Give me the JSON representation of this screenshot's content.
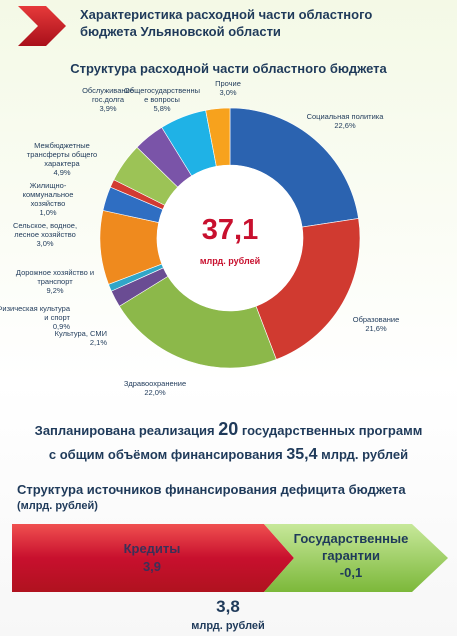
{
  "header": {
    "title_line1": "Характеристика расходной части областного",
    "title_line2": "бюджета Ульяновской области"
  },
  "chart_data": {
    "type": "pie",
    "title": "Структура расходной части областного бюджета",
    "center_value": "37,1",
    "center_unit": "млрд. рублей",
    "series": [
      {
        "name": "Социальная политика",
        "value": 22.6,
        "label": "22,6%",
        "color": "#2b63b0"
      },
      {
        "name": "Образование",
        "value": 21.6,
        "label": "21,6%",
        "color": "#d03a30"
      },
      {
        "name": "Здравоохранение",
        "value": 22.0,
        "label": "22,0%",
        "color": "#8cb84a"
      },
      {
        "name": "Культура, СМИ",
        "value": 2.1,
        "label": "2,1%",
        "color": "#6a4c93"
      },
      {
        "name": "Физическая культура и спорт",
        "value": 0.9,
        "label": "0,9%",
        "color": "#30a6c8"
      },
      {
        "name": "Дорожное хозяйство и транспорт",
        "value": 9.2,
        "label": "9,2%",
        "color": "#ef8a1e"
      },
      {
        "name": "Сельское, водное, лесное хозяйство",
        "value": 3.0,
        "label": "3,0%",
        "color": "#2f6ec2"
      },
      {
        "name": "Жилищно-коммунальное хозяйство",
        "value": 1.0,
        "label": "1,0%",
        "color": "#d23b32"
      },
      {
        "name": "Межбюджетные трансферты общего характера",
        "value": 4.9,
        "label": "4,9%",
        "color": "#9cc356"
      },
      {
        "name": "Обслуживание гос.долга",
        "value": 3.9,
        "label": "3,9%",
        "color": "#7a54a8"
      },
      {
        "name": "Общегосударственные вопросы",
        "value": 5.8,
        "label": "5,8%",
        "color": "#1fb2e6"
      },
      {
        "name": "Прочие",
        "value": 3.0,
        "label": "3,0%",
        "color": "#f7a21d"
      }
    ]
  },
  "programs": {
    "part1": "Запланирована реализация",
    "count": "20",
    "part2": "государственных программ",
    "part3": "с общим объёмом финансирования",
    "amount": "35,4",
    "part4": "млрд. рублей"
  },
  "deficit": {
    "title": "Структура источников финансирования дефицита бюджета",
    "unit": "(млрд. рублей)",
    "credits_label": "Кредиты",
    "credits_value": "3,9",
    "guarantees_line1": "Государственные",
    "guarantees_line2": "гарантии",
    "guarantees_value": "-0,1",
    "total_value": "3,8",
    "total_unit": "млрд. рублей",
    "credits_color": "#c8102e",
    "guarantees_color": "#8cc63f"
  }
}
